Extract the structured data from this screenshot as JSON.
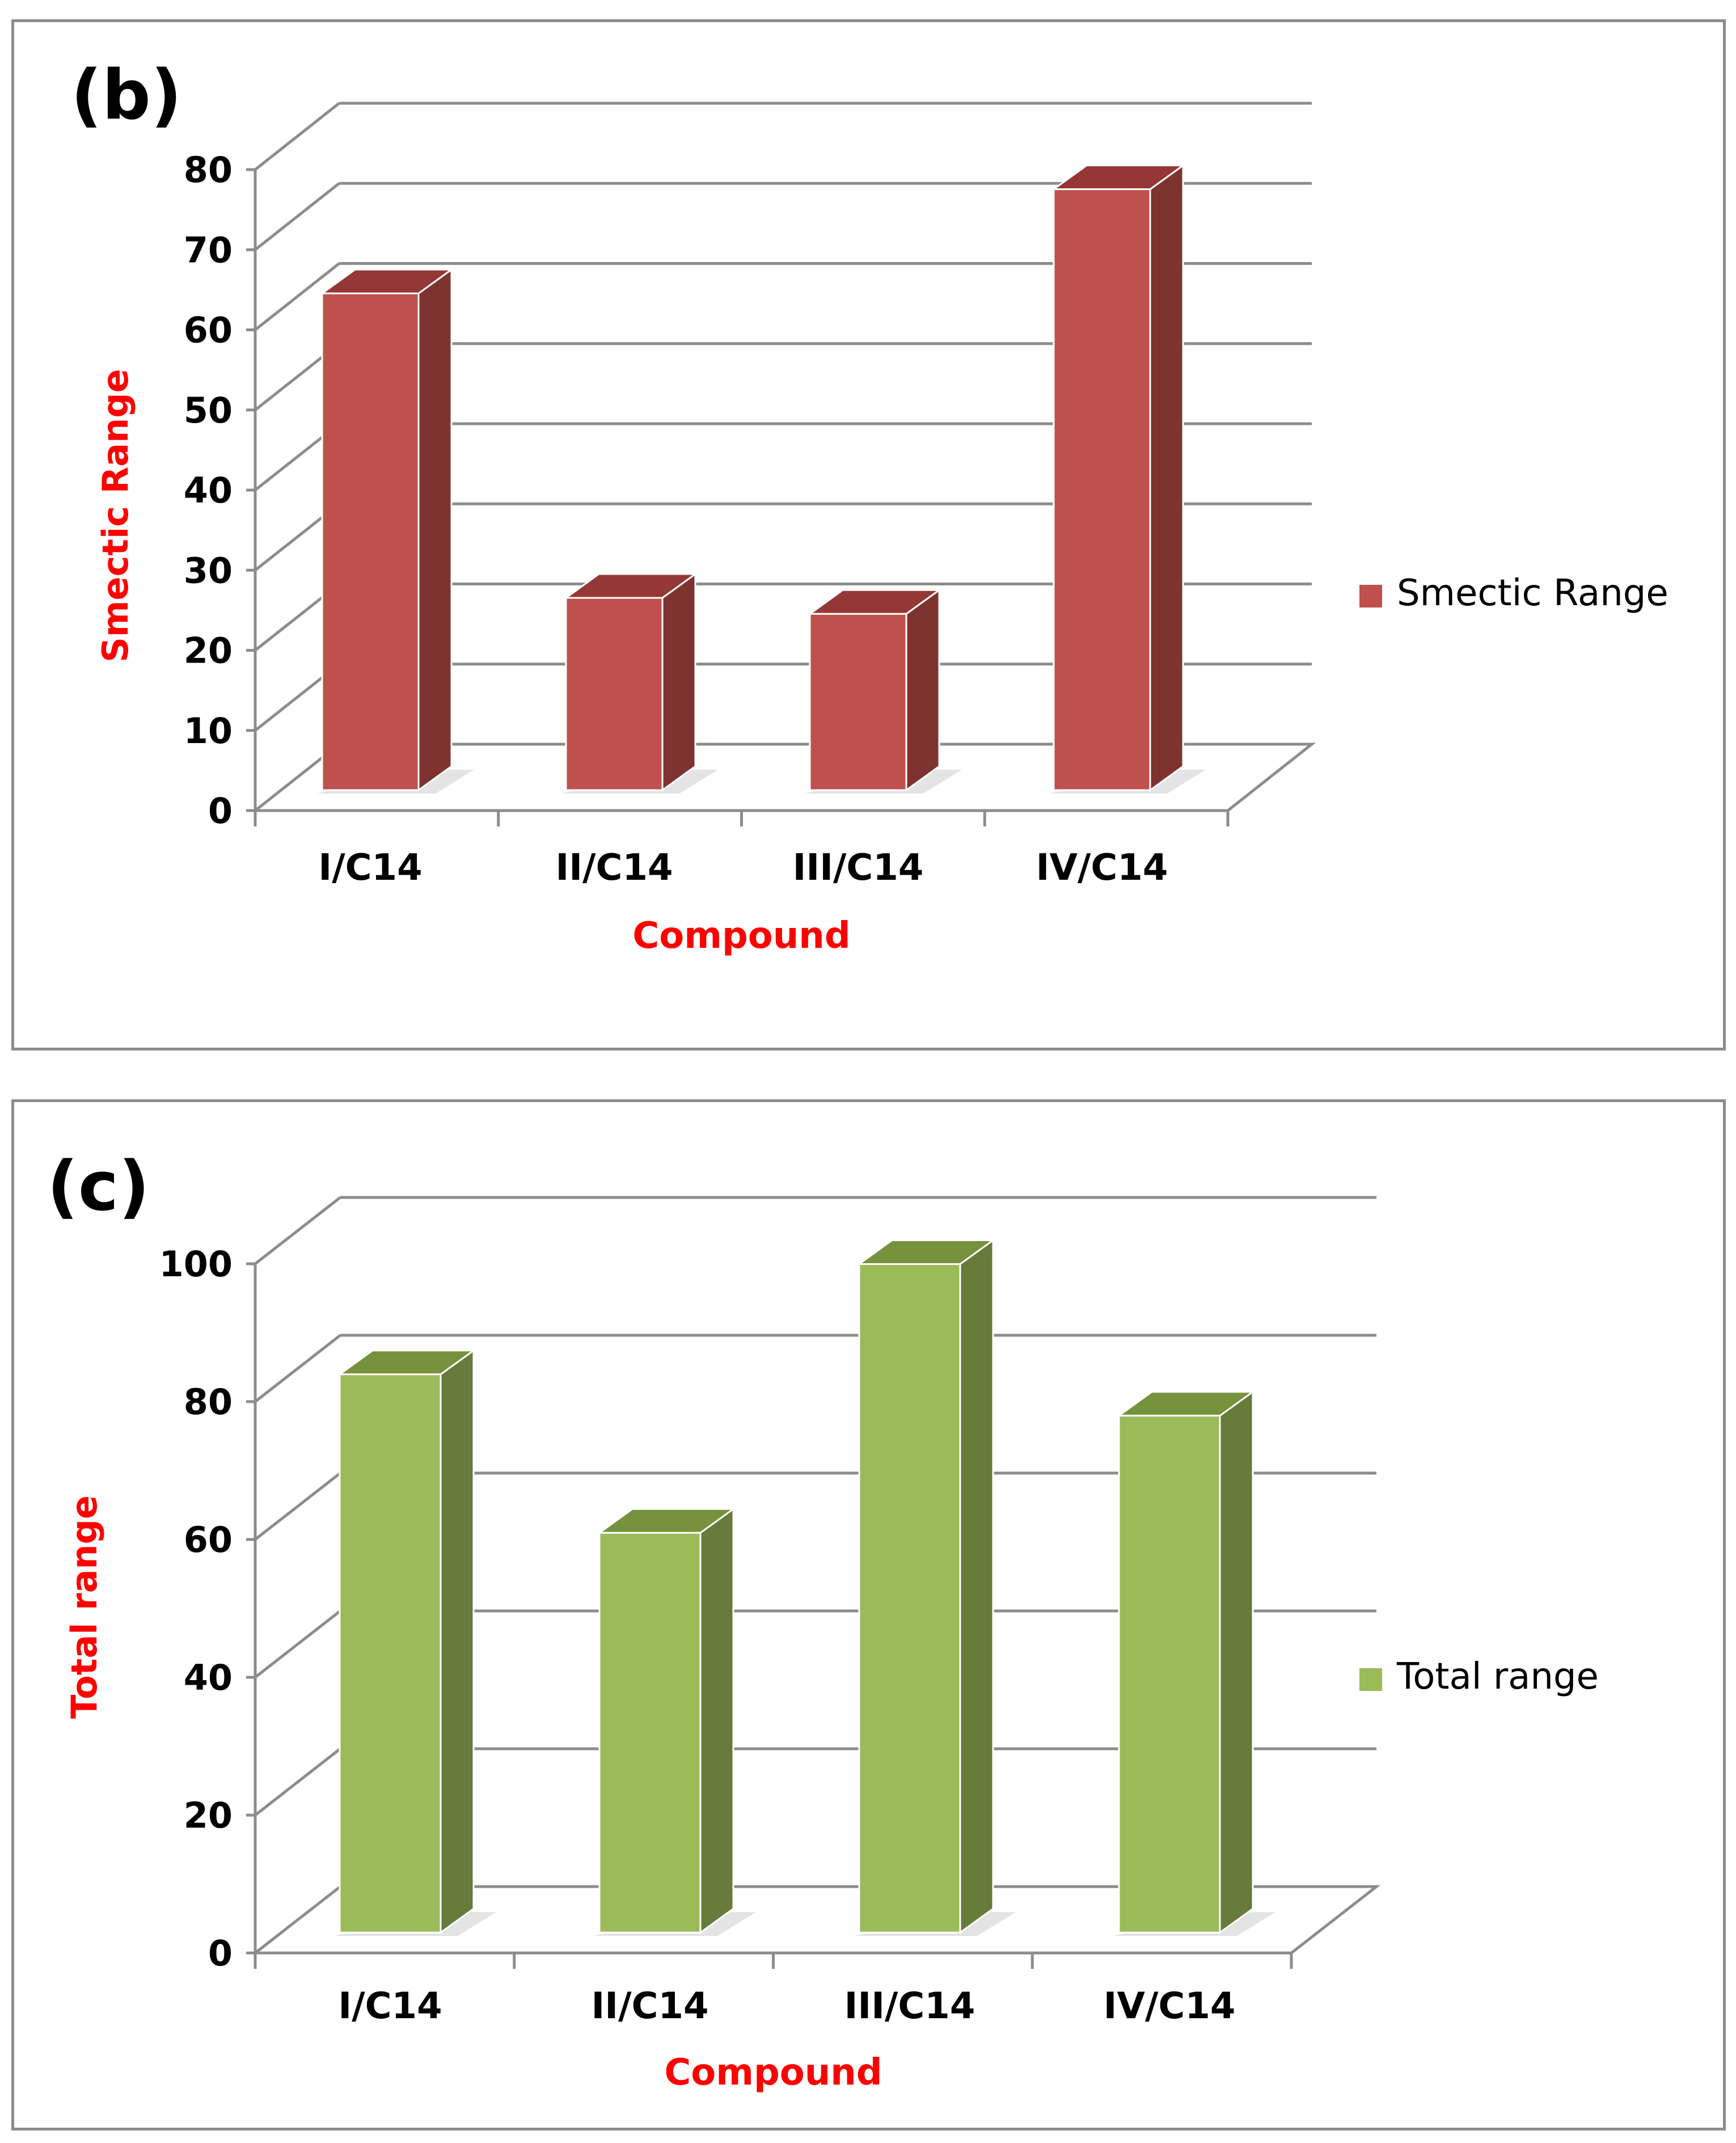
{
  "chart_data": [
    {
      "type": "bar",
      "panel_label": "(b)",
      "categories": [
        "I/C14",
        "II/C14",
        "III/C14",
        "IV/C14"
      ],
      "series": [
        {
          "name": "Smectic Range",
          "values": [
            62,
            24,
            22,
            75
          ]
        }
      ],
      "ylabel": "Smectic Range",
      "xlabel": "Compound",
      "ylim": [
        0,
        80
      ],
      "yticks": [
        "0",
        "10",
        "20",
        "30",
        "40",
        "50",
        "60",
        "70",
        "80"
      ],
      "legend": "Smectic Range",
      "colors": {
        "front": "#c0504d",
        "side": "#7f3330",
        "top": "#953735",
        "shadow": "#d9d9d9"
      }
    },
    {
      "type": "bar",
      "panel_label": "(c)",
      "categories": [
        "I/C14",
        "II/C14",
        "III/C14",
        "IV/C14"
      ],
      "series": [
        {
          "name": "Total range",
          "values": [
            81,
            58,
            97,
            75
          ]
        }
      ],
      "ylabel": "Total range",
      "xlabel": "Compound",
      "ylim": [
        0,
        100
      ],
      "yticks": [
        "0",
        "20",
        "40",
        "60",
        "80",
        "100"
      ],
      "legend": "Total range",
      "colors": {
        "front": "#9bbb59",
        "side": "#677b3a",
        "top": "#76923c",
        "shadow": "#d9d9d9"
      }
    }
  ],
  "styles": {
    "axis_title_color": "#ff0000",
    "tick_color": "#000000",
    "grid_color": "#8c8c8c",
    "panel_border": "#8c8c8c"
  }
}
